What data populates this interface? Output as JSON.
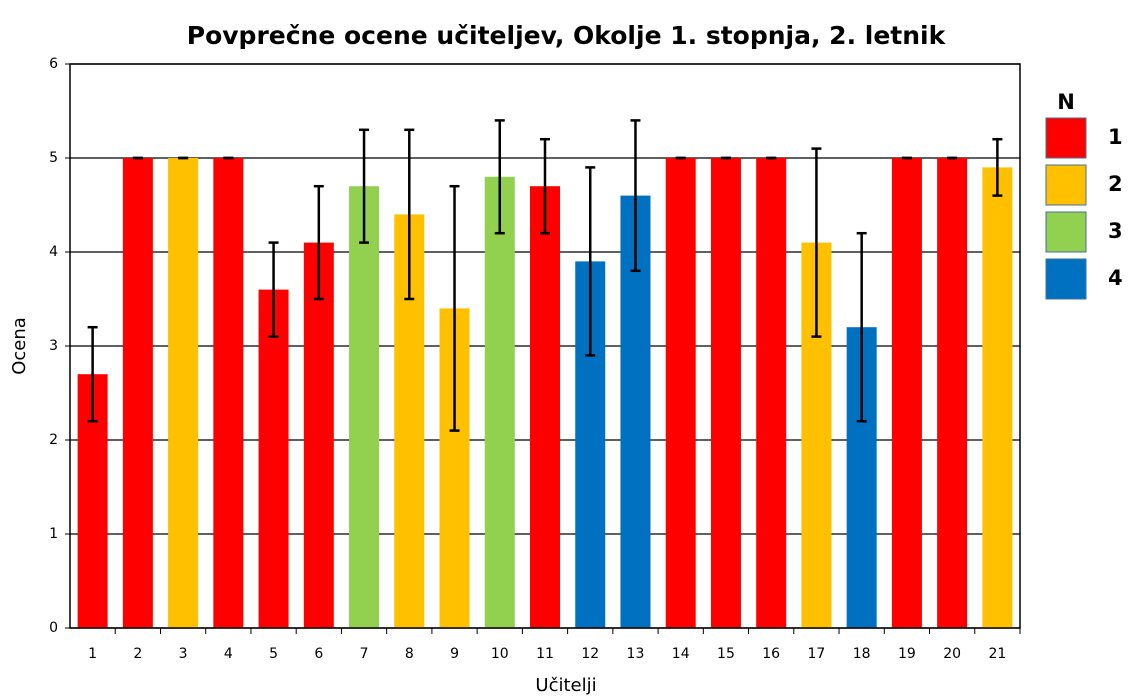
{
  "chart_data": {
    "type": "bar",
    "title": "Povprečne ocene učiteljev, Okolje 1. stopnja, 2. letnik",
    "x_label": "Učitelji",
    "y_label": "Ocena",
    "legend_title": "N",
    "legend_position": "right",
    "grid": true,
    "categories": [
      "1",
      "2",
      "3",
      "4",
      "5",
      "6",
      "7",
      "8",
      "9",
      "10",
      "11",
      "12",
      "13",
      "14",
      "15",
      "16",
      "17",
      "18",
      "19",
      "20",
      "21"
    ],
    "ylim": [
      0,
      6
    ],
    "yticks": [
      0,
      1,
      2,
      3,
      4,
      5,
      6
    ],
    "series": [
      {
        "name": "1",
        "color": "#ff0000",
        "values": [
          2.7,
          5,
          null,
          5,
          3.6,
          4.1,
          null,
          null,
          null,
          null,
          4.7,
          null,
          null,
          5,
          5,
          5,
          null,
          null,
          5,
          5,
          null
        ],
        "errors": [
          0.5,
          0,
          null,
          0,
          0.5,
          0.6,
          null,
          null,
          null,
          null,
          0.5,
          null,
          null,
          0,
          0,
          0,
          null,
          null,
          0,
          0,
          null
        ]
      },
      {
        "name": "2",
        "color": "#ffc000",
        "values": [
          null,
          null,
          5,
          null,
          null,
          null,
          null,
          4.4,
          3.4,
          null,
          null,
          null,
          null,
          null,
          null,
          null,
          4.1,
          null,
          null,
          null,
          4.9
        ],
        "errors": [
          null,
          null,
          0,
          null,
          null,
          null,
          null,
          0.9,
          1.3,
          null,
          null,
          null,
          null,
          null,
          null,
          null,
          1.0,
          null,
          null,
          null,
          0.3
        ]
      },
      {
        "name": "3",
        "color": "#92d050",
        "values": [
          null,
          null,
          null,
          null,
          null,
          null,
          4.7,
          null,
          null,
          4.8,
          null,
          null,
          null,
          null,
          null,
          null,
          null,
          null,
          null,
          null,
          null
        ],
        "errors": [
          null,
          null,
          null,
          null,
          null,
          null,
          0.6,
          null,
          null,
          0.6,
          null,
          null,
          null,
          null,
          null,
          null,
          null,
          null,
          null,
          null,
          null
        ]
      },
      {
        "name": "4",
        "color": "#0070c0",
        "values": [
          null,
          null,
          null,
          null,
          null,
          null,
          null,
          null,
          null,
          null,
          null,
          3.9,
          4.6,
          null,
          null,
          null,
          null,
          3.2,
          null,
          null,
          null
        ],
        "errors": [
          null,
          null,
          null,
          null,
          null,
          null,
          null,
          null,
          null,
          null,
          null,
          1.0,
          0.8,
          null,
          null,
          null,
          null,
          1.0,
          null,
          null,
          null
        ]
      }
    ]
  }
}
